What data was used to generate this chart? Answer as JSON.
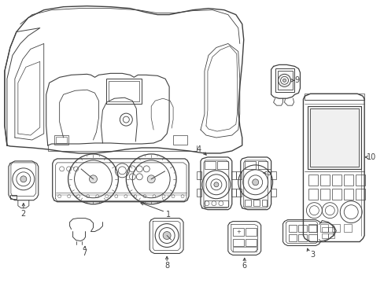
{
  "background_color": "#ffffff",
  "line_color": "#404040",
  "fig_w": 4.89,
  "fig_h": 3.6,
  "dpi": 100
}
